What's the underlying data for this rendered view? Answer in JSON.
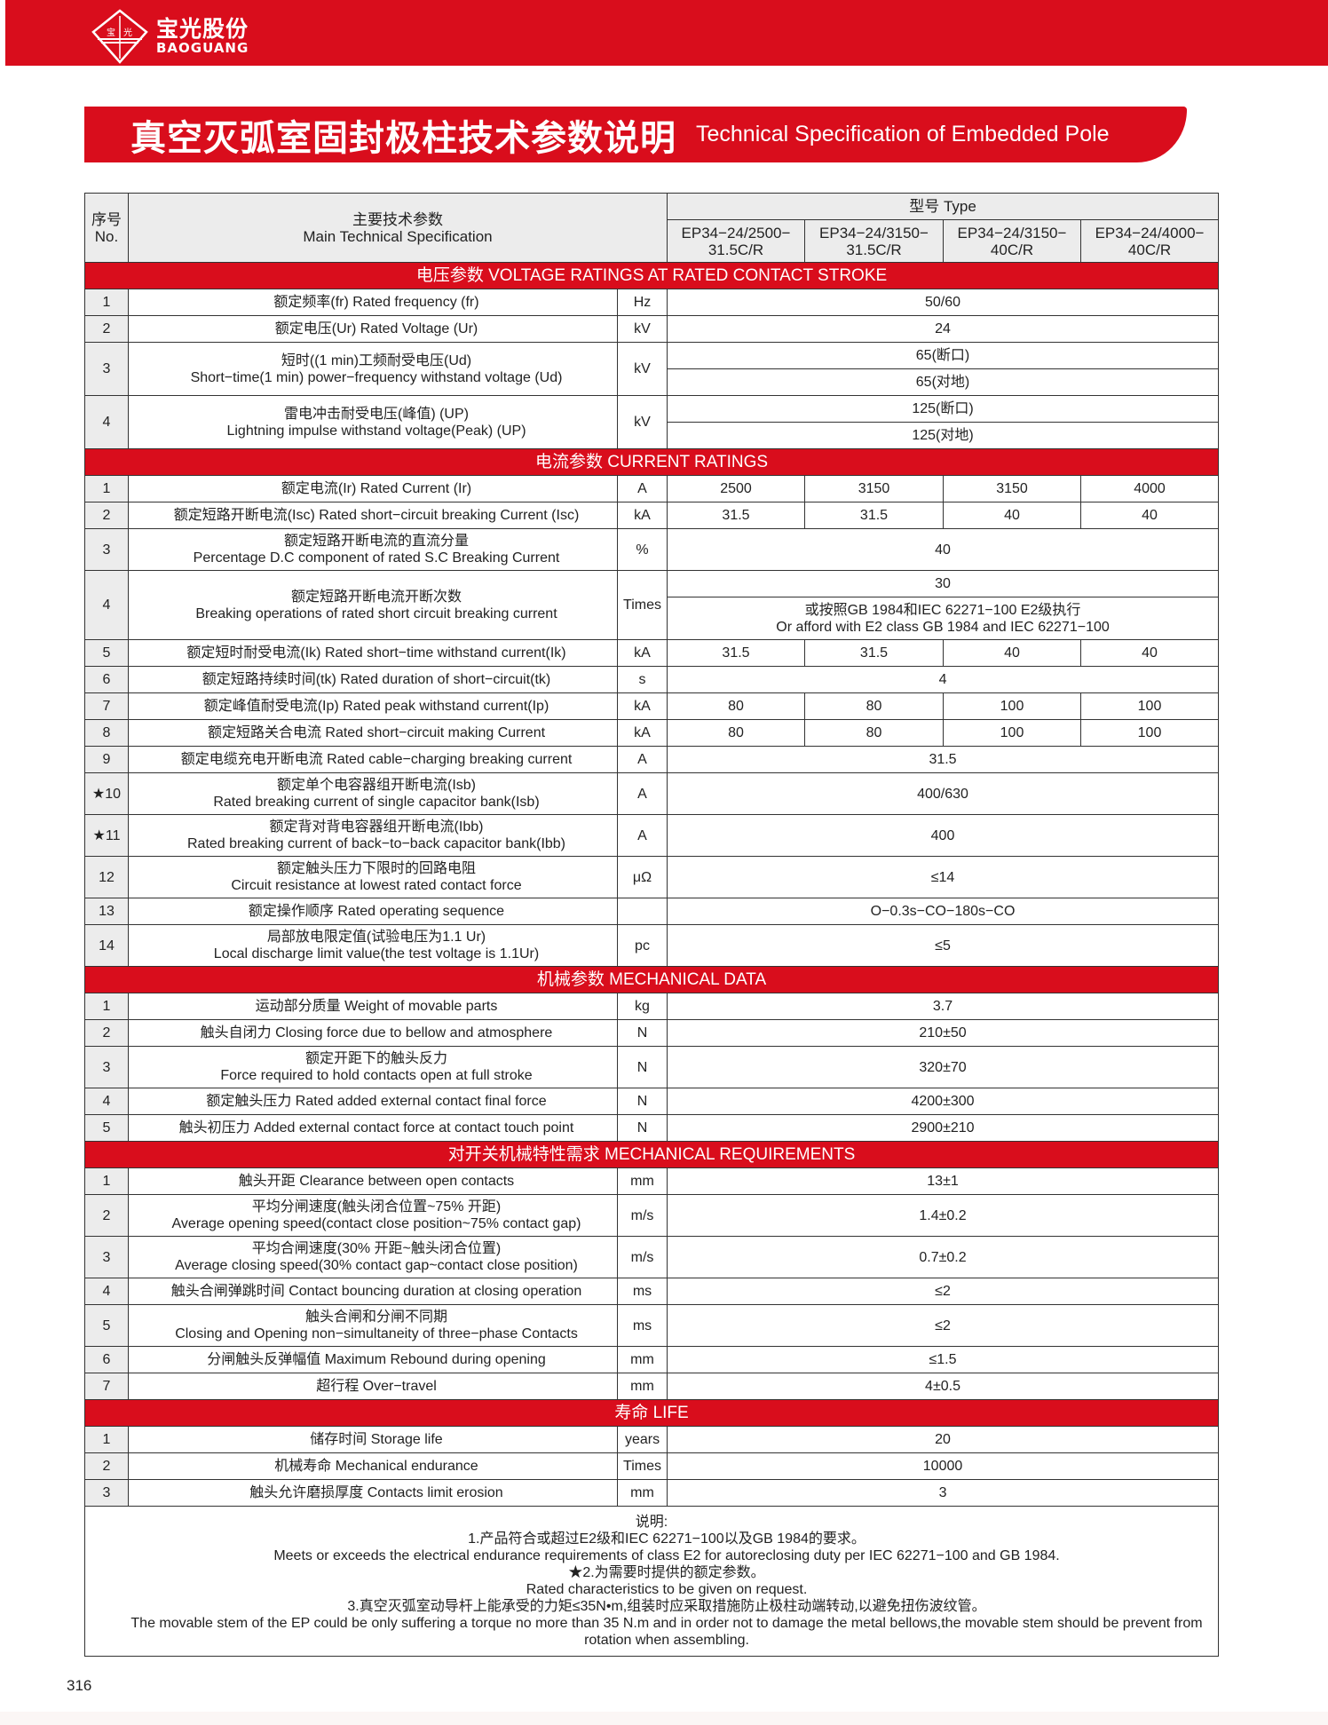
{
  "brand": {
    "name_cn": "宝光股份",
    "name_en": "BAOGUANG",
    "logo_text": "宝光",
    "color": "#d90d1c"
  },
  "title": {
    "cn": "真空灭弧室固封极柱技术参数说明",
    "en": "Technical Specification of Embedded Pole"
  },
  "header": {
    "no_cn": "序号",
    "no_en": "No.",
    "spec_cn": "主要技术参数",
    "spec_en": "Main Technical Specification",
    "type_label": "型号  Type",
    "types": [
      [
        "EP34−24/2500−",
        "31.5C/R"
      ],
      [
        "EP34−24/3150−",
        "31.5C/R"
      ],
      [
        "EP34−24/3150−",
        "40C/R"
      ],
      [
        "EP34−24/4000−",
        "40C/R"
      ]
    ]
  },
  "sections": [
    {
      "title": "电压参数  VOLTAGE RATINGS AT RATED CONTACT STROKE",
      "rows": [
        {
          "no": "1",
          "spec": [
            "额定频率(fr) Rated frequency (fr)"
          ],
          "unit": "Hz",
          "value": "50/60"
        },
        {
          "no": "2",
          "spec": [
            "额定电压(Ur) Rated Voltage (Ur)"
          ],
          "unit": "kV",
          "value": "24"
        },
        {
          "no": "3",
          "spec": [
            "短时((1 min)工频耐受电压(Ud)",
            "Short−time(1 min) power−frequency withstand voltage (Ud)"
          ],
          "unit": "kV",
          "sub": [
            [
              "65(断口)"
            ],
            [
              "65(对地)"
            ]
          ]
        },
        {
          "no": "4",
          "spec": [
            "雷电冲击耐受电压(峰值) (UP)",
            "Lightning impulse withstand voltage(Peak) (UP)"
          ],
          "unit": "kV",
          "sub": [
            [
              "125(断口)"
            ],
            [
              "125(对地)"
            ]
          ]
        }
      ]
    },
    {
      "title": "电流参数  CURRENT RATINGS",
      "rows": [
        {
          "no": "1",
          "spec": [
            "额定电流(Ir) Rated Current (Ir)"
          ],
          "unit": "A",
          "values": [
            "2500",
            "3150",
            "3150",
            "4000"
          ]
        },
        {
          "no": "2",
          "spec": [
            "额定短路开断电流(Isc) Rated short−circuit breaking Current (Isc)"
          ],
          "unit": "kA",
          "values": [
            "31.5",
            "31.5",
            "40",
            "40"
          ]
        },
        {
          "no": "3",
          "spec": [
            "额定短路开断电流的直流分量",
            "Percentage D.C component of rated S.C Breaking Current"
          ],
          "unit": "%",
          "value": "40"
        },
        {
          "no": "4",
          "spec": [
            "额定短路开断电流开断次数",
            "Breaking operations of rated short circuit breaking current"
          ],
          "unit": "Times",
          "sub": [
            [
              "30"
            ],
            [
              "或按照GB 1984和IEC 62271−100 E2级执行",
              "Or afford with E2 class GB 1984 and IEC 62271−100"
            ]
          ]
        },
        {
          "no": "5",
          "spec": [
            "额定短时耐受电流(Ik) Rated short−time withstand current(Ik)"
          ],
          "unit": "kA",
          "values": [
            "31.5",
            "31.5",
            "40",
            "40"
          ]
        },
        {
          "no": "6",
          "spec": [
            "额定短路持续时间(tk) Rated duration of short−circuit(tk)"
          ],
          "unit": "s",
          "value": "4"
        },
        {
          "no": "7",
          "spec": [
            "额定峰值耐受电流(Ip) Rated peak withstand current(Ip)"
          ],
          "unit": "kA",
          "values": [
            "80",
            "80",
            "100",
            "100"
          ]
        },
        {
          "no": "8",
          "spec": [
            "额定短路关合电流 Rated short−circuit making Current"
          ],
          "unit": "kA",
          "values": [
            "80",
            "80",
            "100",
            "100"
          ]
        },
        {
          "no": "9",
          "spec": [
            "额定电缆充电开断电流 Rated cable−charging breaking current"
          ],
          "unit": "A",
          "value": "31.5"
        },
        {
          "no": "★10",
          "spec": [
            "额定单个电容器组开断电流(Isb)",
            "Rated breaking current of single capacitor bank(Isb)"
          ],
          "unit": "A",
          "value": "400/630"
        },
        {
          "no": "★11",
          "spec": [
            "额定背对背电容器组开断电流(Ibb)",
            "Rated breaking current of back−to−back capacitor bank(Ibb)"
          ],
          "unit": "A",
          "value": "400"
        },
        {
          "no": "12",
          "spec": [
            "额定触头压力下限时的回路电阻",
            "Circuit resistance at lowest rated contact force"
          ],
          "unit": "μΩ",
          "value": "≤14"
        },
        {
          "no": "13",
          "spec": [
            "额定操作顺序 Rated operating sequence"
          ],
          "unit": "",
          "value": "O−0.3s−CO−180s−CO"
        },
        {
          "no": "14",
          "spec": [
            "局部放电限定值(试验电压为1.1 Ur)",
            "Local discharge limit value(the test voltage is 1.1Ur)"
          ],
          "unit": "pc",
          "value": "≤5"
        }
      ]
    },
    {
      "title": "机械参数  MECHANICAL DATA",
      "rows": [
        {
          "no": "1",
          "spec": [
            "运动部分质量 Weight of movable parts"
          ],
          "unit": "kg",
          "value": "3.7"
        },
        {
          "no": "2",
          "spec": [
            "触头自闭力 Closing force due to bellow and atmosphere"
          ],
          "unit": "N",
          "value": "210±50"
        },
        {
          "no": "3",
          "spec": [
            "额定开距下的触头反力",
            "Force required to hold contacts open at full stroke"
          ],
          "unit": "N",
          "value": "320±70"
        },
        {
          "no": "4",
          "spec": [
            "额定触头压力 Rated added external contact final force"
          ],
          "unit": "N",
          "value": "4200±300"
        },
        {
          "no": "5",
          "spec": [
            "触头初压力 Added external contact force at contact touch point"
          ],
          "unit": "N",
          "value": "2900±210"
        }
      ]
    },
    {
      "title": "对开关机械特性需求  MECHANICAL REQUIREMENTS",
      "rows": [
        {
          "no": "1",
          "spec": [
            "触头开距 Clearance between open contacts"
          ],
          "unit": "mm",
          "value": "13±1"
        },
        {
          "no": "2",
          "spec": [
            "平均分闸速度(触头闭合位置~75% 开距)",
            "Average opening speed(contact close position~75% contact gap)"
          ],
          "unit": "m/s",
          "value": "1.4±0.2"
        },
        {
          "no": "3",
          "spec": [
            "平均合闸速度(30% 开距~触头闭合位置)",
            "Average closing speed(30% contact gap~contact close position)"
          ],
          "unit": "m/s",
          "value": "0.7±0.2"
        },
        {
          "no": "4",
          "spec": [
            "触头合闸弹跳时间 Contact bouncing duration at closing operation"
          ],
          "unit": "ms",
          "value": "≤2"
        },
        {
          "no": "5",
          "spec": [
            "触头合闸和分闸不同期",
            "Closing and Opening non−simultaneity of three−phase Contacts"
          ],
          "unit": "ms",
          "value": "≤2"
        },
        {
          "no": "6",
          "spec": [
            "分闸触头反弹幅值 Maximum Rebound during opening"
          ],
          "unit": "mm",
          "value": "≤1.5"
        },
        {
          "no": "7",
          "spec": [
            "超行程 Over−travel"
          ],
          "unit": "mm",
          "value": "4±0.5"
        }
      ]
    },
    {
      "title": "寿命  LIFE",
      "rows": [
        {
          "no": "1",
          "spec": [
            "储存时间 Storage life"
          ],
          "unit": "years",
          "value": "20"
        },
        {
          "no": "2",
          "spec": [
            "机械寿命 Mechanical endurance"
          ],
          "unit": "Times",
          "value": "10000"
        },
        {
          "no": "3",
          "spec": [
            "触头允许磨损厚度 Contacts limit erosion"
          ],
          "unit": "mm",
          "value": "3"
        }
      ]
    }
  ],
  "notes": {
    "heading": "说明:",
    "lines": [
      "1.产品符合或超过E2级和IEC 62271−100以及GB 1984的要求。",
      "Meets or exceeds the electrical endurance requirements of class E2 for autoreclosing duty per IEC 62271−100 and GB 1984.",
      "★2.为需要时提供的额定参数。",
      "Rated characteristics to be given on request.",
      "3.真空灭弧室动导杆上能承受的力矩≤35N•m,组装时应采取措施防止极柱动端转动,以避免扭伤波纹管。",
      "The movable stem of the EP could be only suffering a torque no more than 35 N.m and in order not to damage the metal bellows,the movable stem should be prevent from rotation when assembling."
    ]
  },
  "page_number": "316"
}
